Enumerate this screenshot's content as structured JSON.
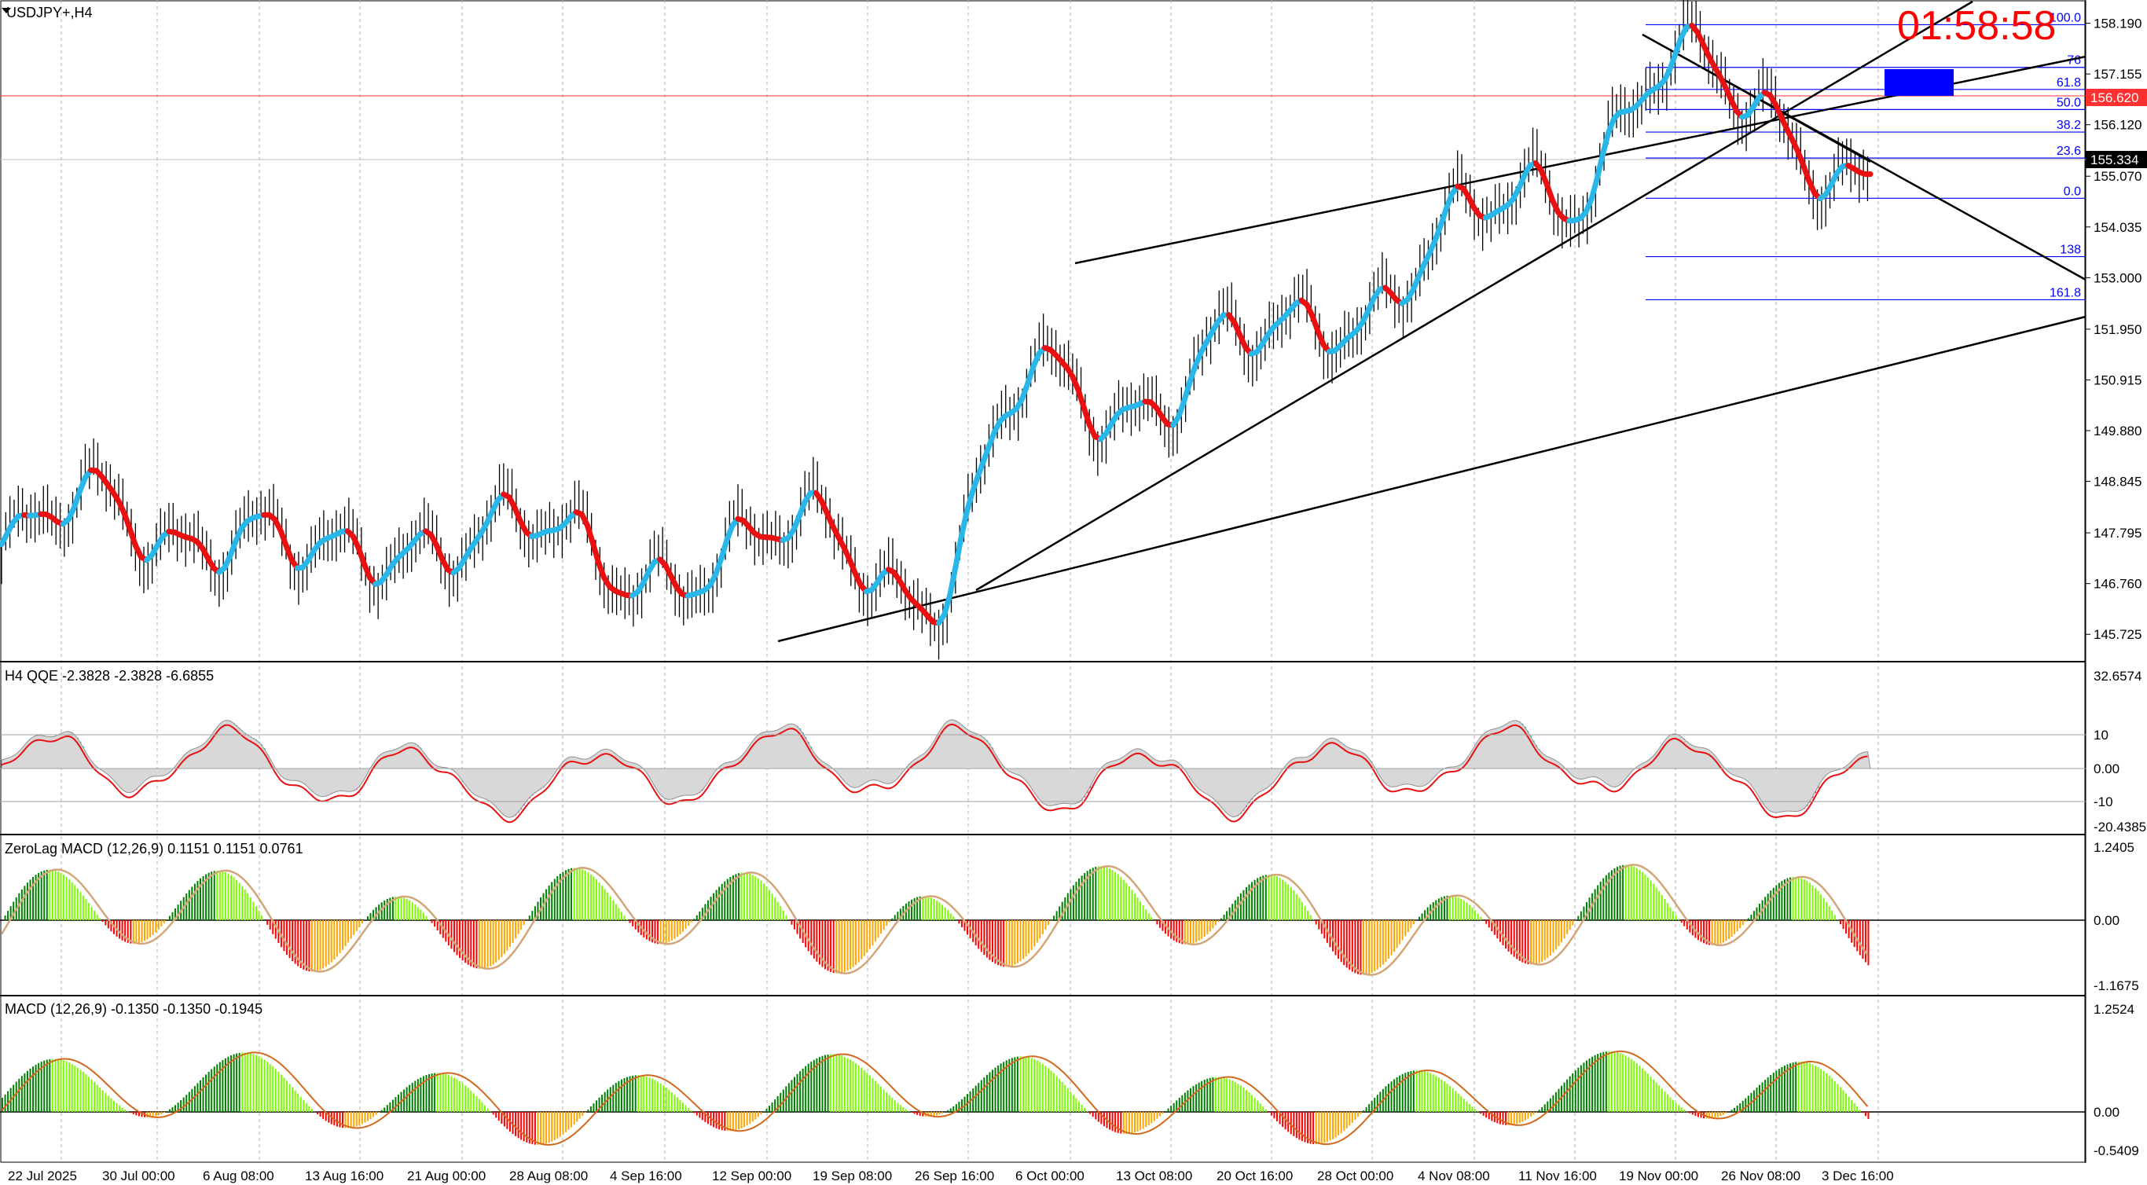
{
  "symbol": "USDJPY+,H4",
  "countdown": "01:58:58",
  "colors": {
    "up": "#29b6e8",
    "down": "#e81010",
    "qqe_pos": "#20b2aa",
    "qqe_neg": "#c71585",
    "macd_up_strong": "#008000",
    "macd_up_weak": "#7cfc00",
    "macd_down_strong": "#ff0000",
    "macd_down_weak": "#ffa500",
    "bid_line": "#ff3030",
    "timer": "#ff0000"
  },
  "price_axis": [
    "158.190",
    "157.155",
    "156.120",
    "155.070",
    "154.035",
    "153.000",
    "151.950",
    "150.915",
    "149.880",
    "148.845",
    "147.795",
    "146.760",
    "145.725"
  ],
  "price_tags": {
    "bid": "156.620",
    "current": "155.334"
  },
  "fib_labels": [
    "100.0",
    "76",
    "61.8",
    "50.0",
    "38.2",
    "23.6",
    "0.0",
    "138",
    "161.8"
  ],
  "time_axis": [
    "22 Jul 2025",
    "30 Jul 00:00",
    "6 Aug 08:00",
    "13 Aug 16:00",
    "21 Aug 00:00",
    "28 Aug 08:00",
    "4 Sep 16:00",
    "12 Sep 00:00",
    "19 Sep 08:00",
    "26 Sep 16:00",
    "6 Oct 00:00",
    "13 Oct 08:00",
    "20 Oct 16:00",
    "28 Oct 00:00",
    "4 Nov 08:00",
    "11 Nov 16:00",
    "19 Nov 00:00",
    "26 Nov 08:00",
    "3 Dec 16:00"
  ],
  "panels": {
    "qqe": {
      "title": "H4 QQE -2.3828 -2.3828 -6.6855",
      "axis": [
        "32.6574",
        "10",
        "0.00",
        "-10",
        "-20.4385"
      ]
    },
    "zlmacd": {
      "title": "ZeroLag MACD (12,26,9) 0.1151 0.1151 0.0761",
      "axis": [
        "1.2405",
        "0.00",
        "-1.1675"
      ]
    },
    "macd": {
      "title": "MACD (12,26,9) -0.1350 -0.1350 -0.1945",
      "axis": [
        "1.2524",
        "0.00",
        "-0.5409"
      ]
    }
  },
  "chart_data": {
    "type": "line",
    "title": "USDJPY+,H4",
    "x": [
      "22 Jul 2025",
      "30 Jul 00:00",
      "6 Aug 08:00",
      "13 Aug 16:00",
      "21 Aug 00:00",
      "28 Aug 08:00",
      "4 Sep 16:00",
      "12 Sep 00:00",
      "19 Sep 08:00",
      "26 Sep 16:00",
      "6 Oct 00:00",
      "13 Oct 08:00",
      "20 Oct 16:00",
      "28 Oct 00:00",
      "4 Nov 08:00",
      "11 Nov 16:00",
      "19 Nov 00:00",
      "26 Nov 08:00",
      "3 Dec 16:00"
    ],
    "series": [
      {
        "values": [
          147.3,
          148.3,
          147.9,
          147.0,
          147.9,
          147.6,
          147.3,
          147.1,
          147.9,
          146.6,
          150.9,
          150.6,
          151.4,
          152.5,
          153.8,
          154.8,
          157.4,
          156.1,
          155.3
        ]
      }
    ],
    "ylim": [
      145.2,
      158.6
    ],
    "grid": true,
    "fib_levels": [
      {
        "label": "100.0",
        "price": 158.16
      },
      {
        "label": "76",
        "price": 157.29
      },
      {
        "label": "61.8",
        "price": 156.84
      },
      {
        "label": "50.0",
        "price": 156.43
      },
      {
        "label": "38.2",
        "price": 155.97
      },
      {
        "label": "23.6",
        "price": 155.44
      },
      {
        "label": "0.0",
        "price": 154.62
      },
      {
        "label": "138",
        "price": 153.43
      },
      {
        "label": "161.8",
        "price": 152.55
      }
    ]
  }
}
